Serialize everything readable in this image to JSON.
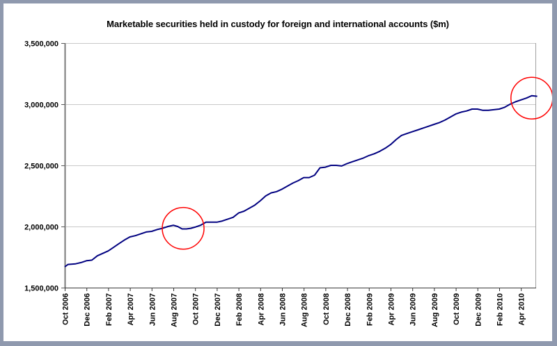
{
  "chart_data": {
    "type": "line",
    "title": "Marketable securities held in custody for foreign and international accounts ($m)",
    "xlabel": "",
    "ylabel": "",
    "ylim": [
      1500000,
      3500000
    ],
    "yticks": [
      1500000,
      2000000,
      2500000,
      3000000,
      3500000
    ],
    "ytick_labels": [
      "1,500,000",
      "2,000,000",
      "2,500,000",
      "3,000,000",
      "3,500,000"
    ],
    "xtick_labels": [
      "Oct 2006",
      "Dec 2006",
      "Feb 2007",
      "Apr 2007",
      "Jun 2007",
      "Aug 2007",
      "Oct 2007",
      "Dec 2007",
      "Feb 2008",
      "Apr 2008",
      "Jun 2008",
      "Aug 2008",
      "Oct 2008",
      "Dec 2008",
      "Feb 2009",
      "Apr 2009",
      "Jun 2009",
      "Aug 2009",
      "Oct 2009",
      "Dec 2009",
      "Feb 2010",
      "Apr 2010"
    ],
    "grid": true,
    "series": [
      {
        "name": "Marketable securities",
        "color": "#000080",
        "x_months": [
          0,
          0.3,
          1,
          1.5,
          2,
          2.5,
          3,
          3.5,
          4,
          4.5,
          5,
          5.5,
          6,
          6.5,
          7,
          7.5,
          8,
          8.5,
          9,
          9.5,
          10,
          10.4,
          10.8,
          11.2,
          11.6,
          12,
          12.5,
          13,
          13.5,
          14,
          14.5,
          15,
          15.5,
          16,
          16.5,
          17,
          17.5,
          18,
          18.5,
          19,
          19.5,
          20,
          20.5,
          21,
          21.5,
          22,
          22.5,
          23,
          23.5,
          24,
          24.5,
          25,
          25.5,
          26,
          26.5,
          27,
          27.5,
          28,
          28.5,
          29,
          29.5,
          30,
          30.5,
          31,
          31.5,
          32,
          32.5,
          33,
          33.5,
          34,
          34.5,
          35,
          35.5,
          36,
          36.5,
          37,
          37.5,
          38,
          38.5,
          39,
          39.5,
          40,
          40.5,
          41,
          41.5,
          42,
          42.5,
          43,
          43.5
        ],
        "values": [
          1670000,
          1690000,
          1695000,
          1705000,
          1720000,
          1725000,
          1760000,
          1780000,
          1800000,
          1830000,
          1860000,
          1890000,
          1915000,
          1925000,
          1940000,
          1955000,
          1960000,
          1975000,
          1985000,
          2000000,
          2010000,
          2000000,
          1980000,
          1980000,
          1985000,
          1995000,
          2010000,
          2035000,
          2035000,
          2035000,
          2045000,
          2060000,
          2075000,
          2110000,
          2125000,
          2150000,
          2175000,
          2210000,
          2250000,
          2275000,
          2285000,
          2305000,
          2330000,
          2355000,
          2375000,
          2400000,
          2400000,
          2420000,
          2480000,
          2485000,
          2500000,
          2500000,
          2495000,
          2515000,
          2530000,
          2545000,
          2560000,
          2580000,
          2595000,
          2615000,
          2640000,
          2670000,
          2710000,
          2745000,
          2760000,
          2775000,
          2790000,
          2805000,
          2820000,
          2835000,
          2850000,
          2870000,
          2895000,
          2920000,
          2935000,
          2945000,
          2960000,
          2960000,
          2950000,
          2950000,
          2955000,
          2960000,
          2975000,
          3000000,
          3020000,
          3035000,
          3050000,
          3070000,
          3065000
        ]
      }
    ],
    "annotations": [
      {
        "type": "circle",
        "color": "#ff0000",
        "x_month": 10.9,
        "y_value": 1985000
      },
      {
        "type": "circle",
        "color": "#ff0000",
        "x_month": 43.0,
        "y_value": 3050000
      }
    ]
  }
}
